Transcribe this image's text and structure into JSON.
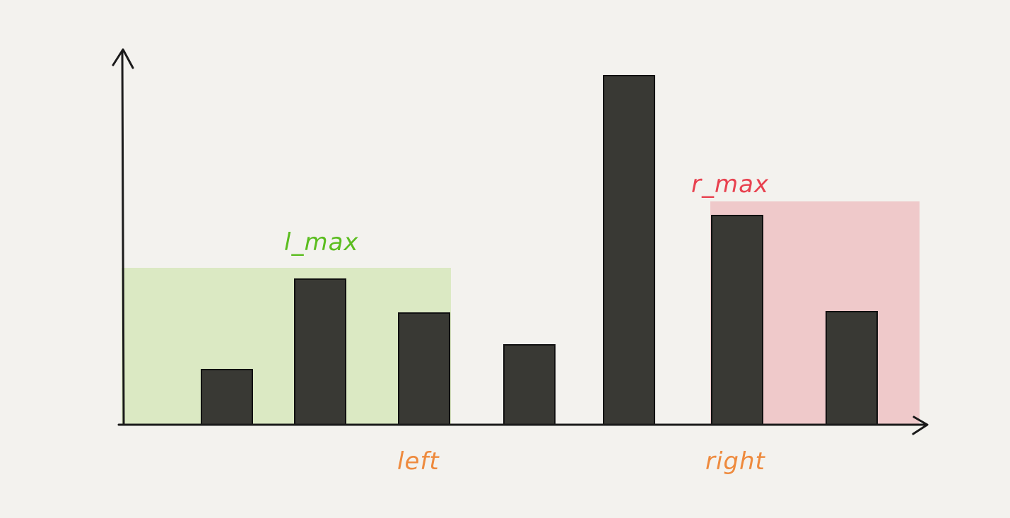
{
  "diagram": {
    "type": "bar",
    "bar_heights": [
      0,
      78,
      206,
      158,
      113,
      494,
      296,
      160
    ],
    "regions": {
      "l_max": {
        "label": "l_max",
        "color": "#dbe9c3",
        "label_color": "#5bbd1f",
        "level": 222,
        "from_bar": 0,
        "to_bar": 3
      },
      "r_max": {
        "label": "r_max",
        "color": "#efc9ca",
        "label_color": "#e8414f",
        "level": 316,
        "from_bar": 6,
        "to_bar": 7
      }
    },
    "pointers": {
      "left": {
        "label": "left",
        "bar": 3,
        "color": "#ee8a3d"
      },
      "right": {
        "label": "right",
        "bar": 6,
        "color": "#ee8a3d"
      }
    },
    "bar_color": "#393934",
    "axis_color": "#1a1a1a"
  }
}
